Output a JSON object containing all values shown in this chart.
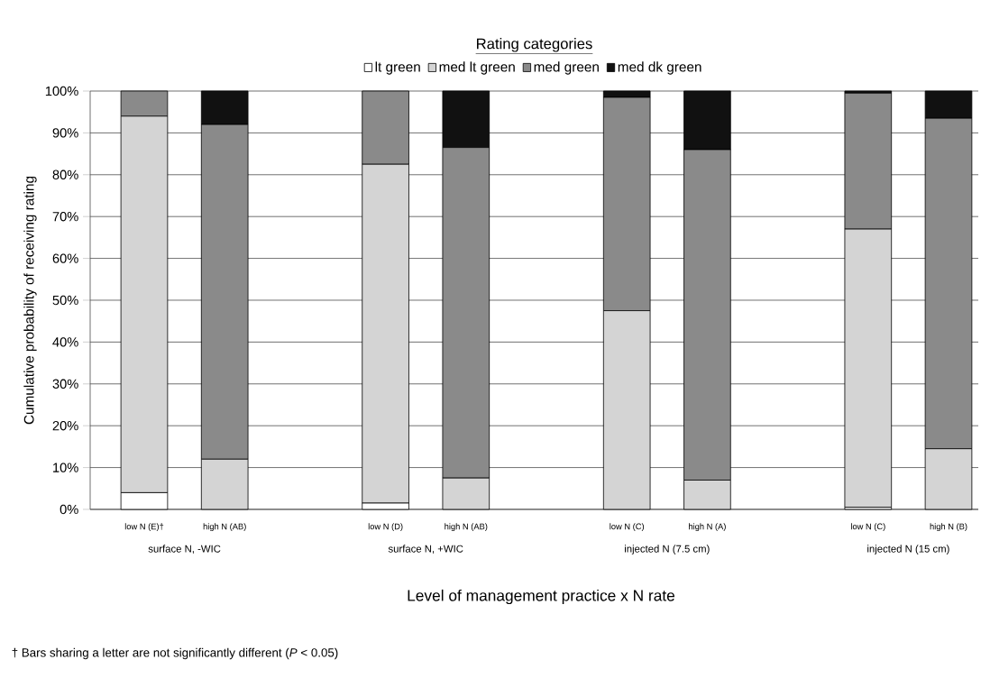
{
  "chart_data": {
    "type": "bar",
    "stacked": true,
    "legend_title": "Rating categories",
    "xlabel": "Level of management practice x N rate",
    "ylabel": "Cumulative probability of receiving rating",
    "categories": [
      "low N (E)†",
      "high N (AB)",
      null,
      "low N (D)",
      "high N (AB)",
      null,
      "low N (C)",
      "high N (A)",
      null,
      "low N (C)",
      "high N (B)"
    ],
    "series": [
      {
        "name": "lt green",
        "color": "#ffffff",
        "values": [
          4,
          0,
          null,
          1.5,
          0,
          null,
          0,
          0,
          null,
          0.5,
          0
        ]
      },
      {
        "name": "med lt green",
        "color": "#d4d4d4",
        "values": [
          90,
          12,
          null,
          81,
          7.5,
          null,
          47.5,
          7,
          null,
          66.5,
          14.5
        ]
      },
      {
        "name": "med green",
        "color": "#8a8a8a",
        "values": [
          6,
          80,
          null,
          17.5,
          79,
          null,
          51,
          79,
          null,
          32.5,
          79
        ]
      },
      {
        "name": "med dk green",
        "color": "#111111",
        "values": [
          0,
          8,
          null,
          0,
          13.5,
          null,
          1.5,
          14,
          null,
          0.5,
          6.5
        ]
      }
    ],
    "ylim": [
      0,
      100
    ],
    "yticks": [
      {
        "value": 0,
        "label": "0%"
      },
      {
        "value": 10,
        "label": "10%"
      },
      {
        "value": 20,
        "label": "20%"
      },
      {
        "value": 30,
        "label": "30%"
      },
      {
        "value": 40,
        "label": "40%"
      },
      {
        "value": 50,
        "label": "50%"
      },
      {
        "value": 60,
        "label": "60%"
      },
      {
        "value": 70,
        "label": "70%"
      },
      {
        "value": 80,
        "label": "80%"
      },
      {
        "value": 90,
        "label": "90%"
      },
      {
        "value": 100,
        "label": "100%"
      }
    ],
    "grid": "y",
    "legend": "top",
    "annotations": [
      "surface N, -WIC",
      "surface N, +WIC",
      "injected N (7.5 cm)",
      "injected N (15 cm)",
      "† Bars sharing a letter are not significantly different (*P* < 0.05)"
    ]
  }
}
